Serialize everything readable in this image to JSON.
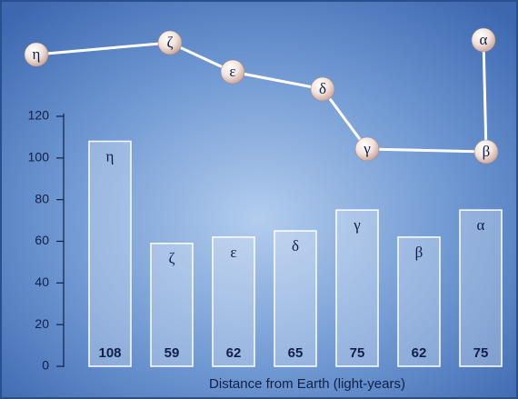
{
  "chart_data": {
    "type": "bar",
    "x_label": "Distance from Earth (light-years)",
    "categories": [
      "η",
      "ζ",
      "ε",
      "δ",
      "γ",
      "β",
      "α"
    ],
    "values": [
      108,
      59,
      62,
      65,
      75,
      62,
      75
    ],
    "color": "#dfe8f7",
    "ylim": [
      0,
      120
    ],
    "yticks": [
      0,
      20,
      40,
      60,
      80,
      100,
      120
    ]
  }
}
